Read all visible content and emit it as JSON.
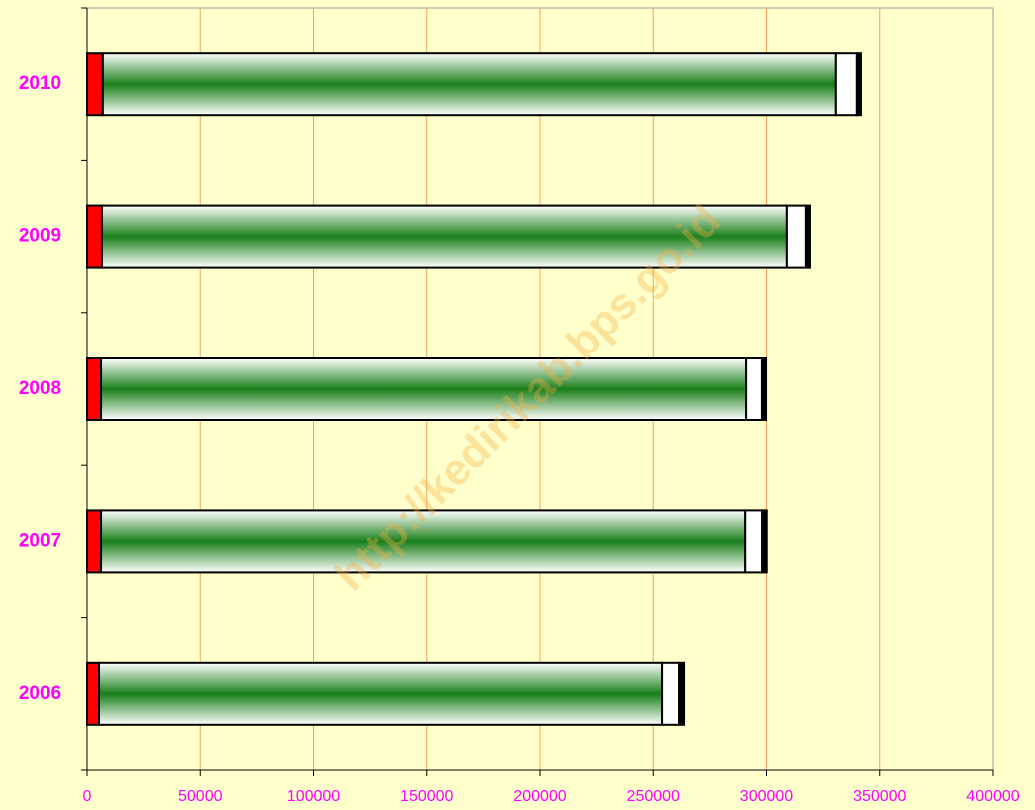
{
  "chart_data": {
    "type": "stacked-barh",
    "categories": [
      "2006",
      "2007",
      "2008",
      "2009",
      "2010"
    ],
    "series": [
      {
        "color": "#ff0000",
        "values": [
          5300,
          6200,
          6200,
          6600,
          7000
        ]
      },
      {
        "color": "#1a7f1a",
        "values": [
          248600,
          284400,
          284800,
          302400,
          323600
        ]
      },
      {
        "color": "#ffffff",
        "values": [
          7500,
          7500,
          7000,
          8400,
          9300
        ]
      },
      {
        "color": "#000000",
        "values": [
          2200,
          2000,
          1800,
          1800,
          1800
        ]
      }
    ],
    "xlim": [
      0,
      400000
    ],
    "xticks": [
      0,
      50000,
      100000,
      150000,
      200000,
      250000,
      300000,
      350000,
      400000
    ],
    "grid": true,
    "watermark": "http://kedirikab.bps.go.id"
  }
}
